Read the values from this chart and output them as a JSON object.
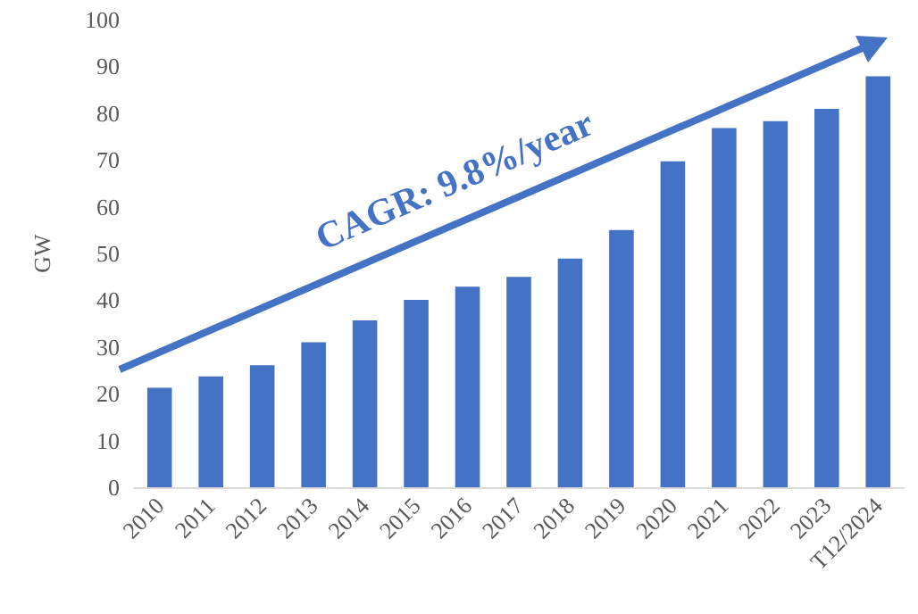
{
  "chart_data": {
    "type": "bar",
    "ylabel": "GW",
    "categories": [
      "2010",
      "2011",
      "2012",
      "2013",
      "2014",
      "2015",
      "2016",
      "2017",
      "2018",
      "2019",
      "2020",
      "2021",
      "2022",
      "2023",
      "T12/2024"
    ],
    "values": [
      21.3,
      23.7,
      26.1,
      31,
      35.7,
      40.1,
      42.9,
      45,
      48.9,
      55,
      69.7,
      76.8,
      78.3,
      80.9,
      87.9
    ],
    "color": "#4472c4",
    "ylim": [
      0,
      100
    ],
    "yticks": [
      0,
      10,
      20,
      30,
      40,
      50,
      60,
      70,
      80,
      90,
      100
    ],
    "grid": false,
    "annotations": [
      "CAGR: 9.8%/year"
    ]
  }
}
